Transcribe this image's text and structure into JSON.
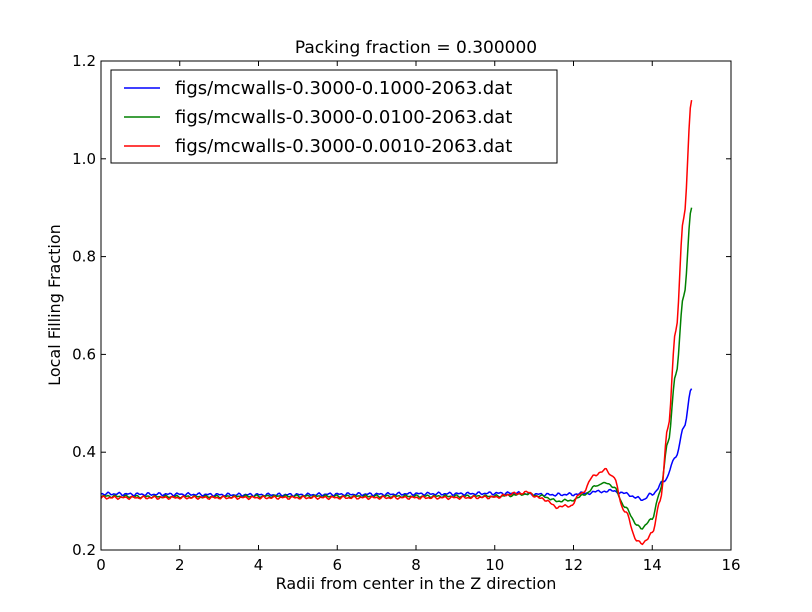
{
  "chart_data": {
    "type": "line",
    "title": "Packing fraction = 0.300000",
    "xlabel": "Radii from center in the Z direction",
    "ylabel": "Local Filling Fraction",
    "xlim": [
      0,
      16
    ],
    "ylim": [
      0.2,
      1.2
    ],
    "x_ticks": [
      "0",
      "2",
      "4",
      "6",
      "8",
      "10",
      "12",
      "14",
      "16"
    ],
    "y_ticks": [
      "0.2",
      "0.4",
      "0.6",
      "0.8",
      "1.0",
      "1.2"
    ],
    "legend_position": "top-left",
    "series": [
      {
        "name": "figs/mcwalls-0.3000-0.1000-2063.dat",
        "color": "#0000ff",
        "x": [
          0,
          1,
          2,
          3,
          4,
          5,
          6,
          7,
          8,
          9,
          10,
          10.5,
          11,
          11.5,
          12,
          12.3,
          12.6,
          12.9,
          13.2,
          13.5,
          13.75,
          14.0,
          14.3,
          14.6,
          14.8,
          15.0
        ],
        "y": [
          0.315,
          0.314,
          0.314,
          0.313,
          0.313,
          0.313,
          0.314,
          0.314,
          0.315,
          0.315,
          0.316,
          0.316,
          0.314,
          0.313,
          0.314,
          0.316,
          0.319,
          0.321,
          0.318,
          0.31,
          0.303,
          0.315,
          0.34,
          0.39,
          0.45,
          0.53
        ]
      },
      {
        "name": "figs/mcwalls-0.3000-0.0100-2063.dat",
        "color": "#008000",
        "x": [
          0,
          1,
          2,
          3,
          4,
          5,
          6,
          7,
          8,
          9,
          10,
          10.5,
          10.8,
          11.2,
          11.6,
          12.0,
          12.3,
          12.6,
          12.8,
          13.0,
          13.3,
          13.6,
          13.75,
          14.0,
          14.2,
          14.4,
          14.6,
          14.8,
          15.0
        ],
        "y": [
          0.31,
          0.309,
          0.309,
          0.309,
          0.31,
          0.31,
          0.31,
          0.31,
          0.31,
          0.31,
          0.31,
          0.312,
          0.315,
          0.31,
          0.3,
          0.302,
          0.315,
          0.332,
          0.338,
          0.33,
          0.29,
          0.252,
          0.245,
          0.265,
          0.32,
          0.42,
          0.56,
          0.72,
          0.9
        ]
      },
      {
        "name": "figs/mcwalls-0.3000-0.0010-2063.dat",
        "color": "#ff0000",
        "x": [
          0,
          1,
          2,
          3,
          4,
          5,
          6,
          7,
          8,
          9,
          10,
          10.5,
          10.8,
          11.2,
          11.6,
          11.9,
          12.2,
          12.5,
          12.8,
          13.0,
          13.3,
          13.6,
          13.75,
          14.0,
          14.2,
          14.4,
          14.6,
          14.8,
          15.0
        ],
        "y": [
          0.307,
          0.307,
          0.307,
          0.307,
          0.307,
          0.307,
          0.307,
          0.307,
          0.307,
          0.307,
          0.308,
          0.315,
          0.318,
          0.305,
          0.288,
          0.29,
          0.315,
          0.35,
          0.365,
          0.35,
          0.28,
          0.222,
          0.212,
          0.235,
          0.3,
          0.45,
          0.65,
          0.88,
          1.12
        ]
      }
    ]
  }
}
